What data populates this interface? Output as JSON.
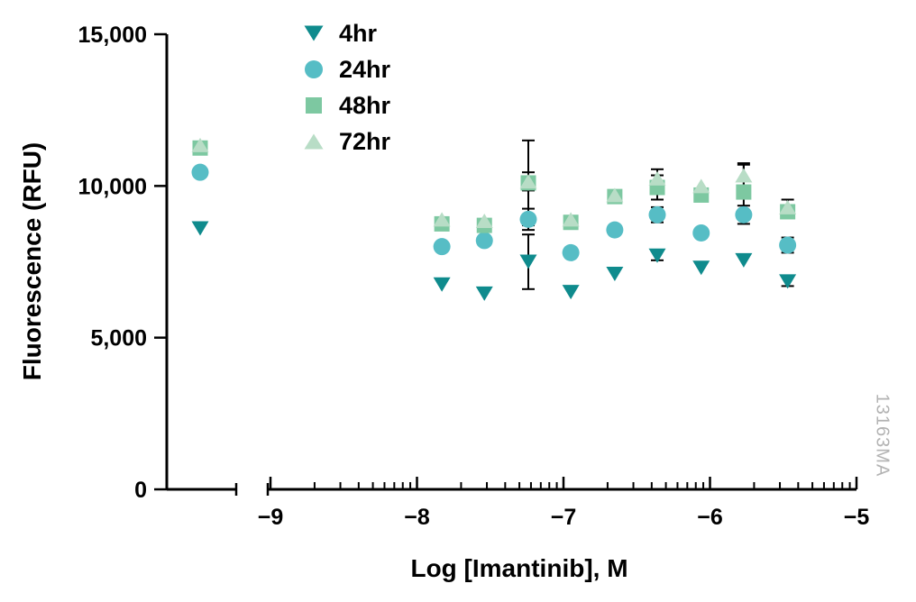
{
  "chart_data": {
    "type": "scatter",
    "xlabel": "Log [Imantinib], M",
    "ylabel": "Fluorescence (RFU)",
    "watermark": "13163MA",
    "x_scale": "log10",
    "xlim": [
      -9,
      -5
    ],
    "ylim": [
      0,
      15000
    ],
    "xticks": [
      -9,
      -8,
      -7,
      -6,
      -5
    ],
    "yticks": [
      0,
      5000,
      10000,
      15000
    ],
    "grid": false,
    "legend_position": "top-left-inside",
    "axis_break": "x-axis break between untreated control column and -9",
    "x": [
      -7.83,
      -7.54,
      -7.24,
      -6.95,
      -6.65,
      -6.36,
      -6.06,
      -5.77,
      -5.47
    ],
    "series": [
      {
        "name": "4hr",
        "marker": "triangle-down",
        "color": "#0f8b8d",
        "control_y": 8600,
        "y": [
          6750,
          6450,
          7500,
          6500,
          7100,
          7700,
          7300,
          7550,
          6850
        ],
        "err": [
          0,
          0,
          900,
          0,
          0,
          150,
          0,
          0,
          150
        ]
      },
      {
        "name": "24hr",
        "marker": "circle",
        "color": "#56bdc5",
        "control_y": 10450,
        "y": [
          8000,
          8200,
          8900,
          7800,
          8550,
          9050,
          8450,
          9050,
          8050
        ],
        "err": [
          0,
          0,
          350,
          0,
          0,
          250,
          0,
          300,
          250
        ]
      },
      {
        "name": "48hr",
        "marker": "square",
        "color": "#7dc8a1",
        "control_y": 11250,
        "y": [
          8750,
          8700,
          10100,
          8800,
          9650,
          9950,
          9700,
          9800,
          9150
        ],
        "err": [
          150,
          150,
          1400,
          150,
          0,
          400,
          200,
          900,
          200
        ]
      },
      {
        "name": "72hr",
        "marker": "triangle-up",
        "color": "#b8ddc6",
        "control_y": 11350,
        "y": [
          8900,
          8850,
          10150,
          8900,
          9700,
          10250,
          10000,
          10350,
          9300
        ],
        "err": [
          0,
          0,
          300,
          0,
          0,
          300,
          0,
          400,
          250
        ]
      }
    ]
  }
}
